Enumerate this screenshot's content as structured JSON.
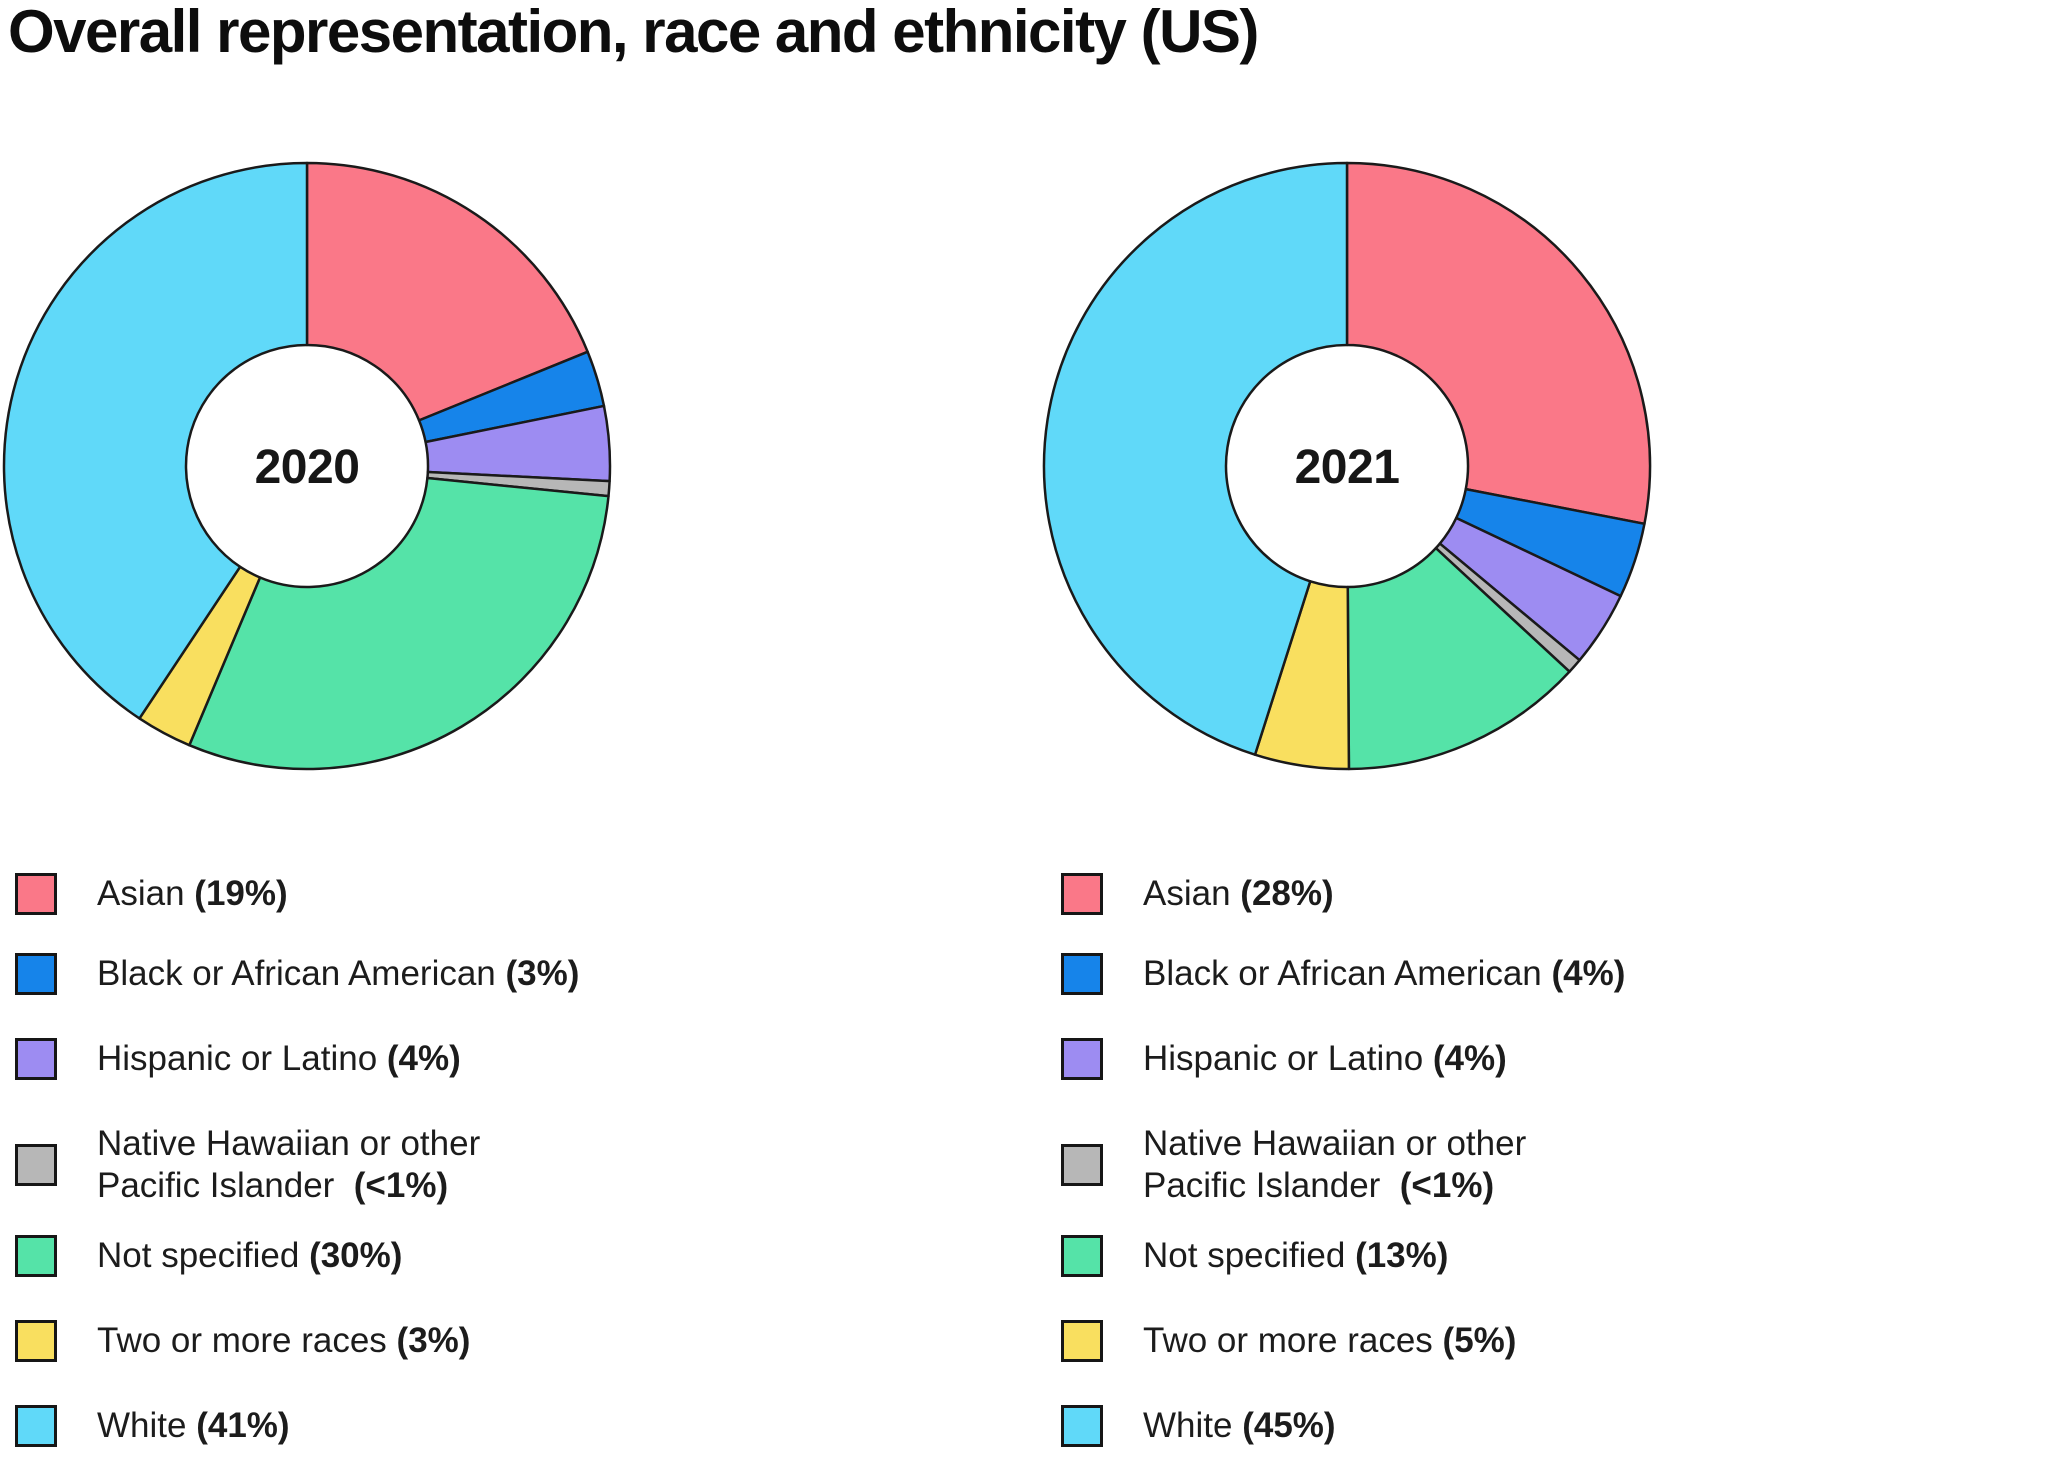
{
  "page": {
    "title": "Overall representation, race and ethnicity (US)",
    "background": "#ffffff"
  },
  "colors": {
    "asian": "#FA7888",
    "black_or_african_american": "#1684EA",
    "hispanic_or_latino": "#9D8CF2",
    "native_hawaiian_pacific_islander": "#B7B7B7",
    "not_specified": "#55E3A8",
    "two_or_more_races": "#F9DF5F",
    "white": "#60D9F9",
    "slice_outline": "#1A1A1A",
    "text": "#1C1C1C"
  },
  "chart_data": [
    {
      "type": "pie",
      "variant": "donut",
      "center_label": "2020",
      "units": "%",
      "start_angle_deg": 0,
      "direction": "clockwise",
      "legend_position": "below",
      "slices": [
        {
          "key": "asian",
          "label": "Asian",
          "display": "(19%)",
          "value": 19
        },
        {
          "key": "black_or_african_american",
          "label": "Black or African American",
          "display": "(3%)",
          "value": 3
        },
        {
          "key": "hispanic_or_latino",
          "label": "Hispanic or Latino",
          "display": "(4%)",
          "value": 4
        },
        {
          "key": "native_hawaiian_pacific_islander",
          "label": "Native Hawaiian or other",
          "label2": "Pacific Islander ",
          "display": "(<1%)",
          "value": 0.8
        },
        {
          "key": "not_specified",
          "label": "Not specified",
          "display": "(30%)",
          "value": 30
        },
        {
          "key": "two_or_more_races",
          "label": "Two or more races",
          "display": "(3%)",
          "value": 3
        },
        {
          "key": "white",
          "label": "White",
          "display": "(41%)",
          "value": 41
        }
      ]
    },
    {
      "type": "pie",
      "variant": "donut",
      "center_label": "2021",
      "units": "%",
      "start_angle_deg": 0,
      "direction": "clockwise",
      "legend_position": "below",
      "slices": [
        {
          "key": "asian",
          "label": "Asian",
          "display": "(28%)",
          "value": 28
        },
        {
          "key": "black_or_african_american",
          "label": "Black or African American",
          "display": "(4%)",
          "value": 4
        },
        {
          "key": "hispanic_or_latino",
          "label": "Hispanic or Latino",
          "display": "(4%)",
          "value": 4
        },
        {
          "key": "native_hawaiian_pacific_islander",
          "label": "Native Hawaiian or other",
          "label2": "Pacific Islander ",
          "display": "(<1%)",
          "value": 0.8
        },
        {
          "key": "not_specified",
          "label": "Not specified",
          "display": "(13%)",
          "value": 13
        },
        {
          "key": "two_or_more_races",
          "label": "Two or more races",
          "display": "(5%)",
          "value": 5
        },
        {
          "key": "white",
          "label": "White",
          "display": "(45%)",
          "value": 45
        }
      ]
    }
  ]
}
